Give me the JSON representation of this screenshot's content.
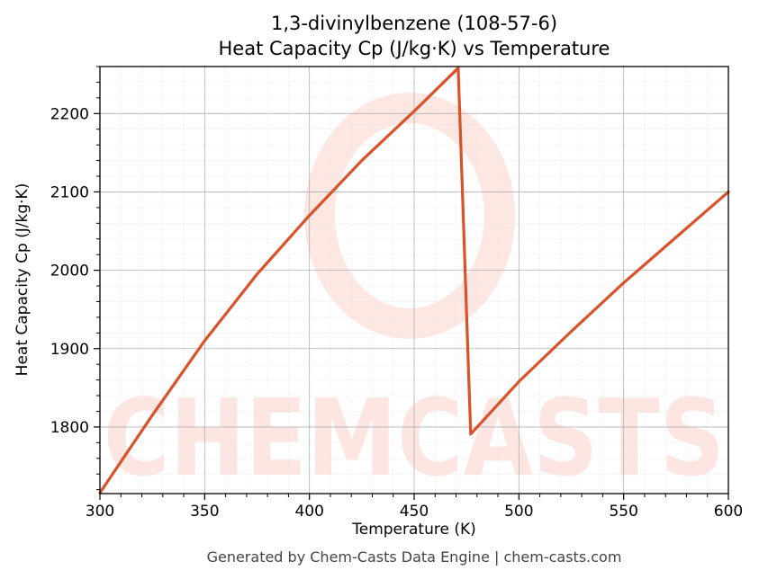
{
  "chart_data": {
    "type": "line",
    "title_line1": "1,3-divinylbenzene (108-57-6)",
    "title_line2": "Heat Capacity Cp (J/kg·K) vs Temperature",
    "xlabel": "Temperature (K)",
    "ylabel": "Heat Capacity Cp (J/kg·K)",
    "xlim": [
      300,
      600
    ],
    "ylim": [
      1715,
      2260
    ],
    "xticks": [
      300,
      350,
      400,
      450,
      500,
      550,
      600
    ],
    "yticks": [
      1800,
      1900,
      2000,
      2100,
      2200
    ],
    "grid": true,
    "series": [
      {
        "color": "#d9532a",
        "x": [
          300,
          325,
          350,
          375,
          400,
          425,
          450,
          471,
          477,
          500,
          525,
          550,
          575,
          600
        ],
        "y": [
          1716,
          1815,
          1910,
          1995,
          2070,
          2140,
          2203,
          2258,
          1791,
          1858,
          1922,
          1984,
          2042,
          2100
        ]
      }
    ],
    "watermark": "CHEMCASTS"
  },
  "footer": "Generated by Chem-Casts Data Engine | chem-casts.com"
}
